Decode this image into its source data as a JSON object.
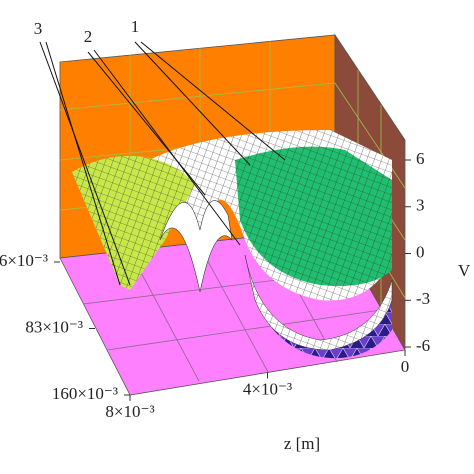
{
  "chart_data": {
    "type": "surface3d",
    "annotations": [
      "1",
      "2",
      "3"
    ],
    "x_label": "z [m]",
    "xlim": [
      0.008,
      0
    ],
    "xticks": [
      {
        "value": 0.008,
        "label": "8×10⁻³"
      },
      {
        "value": 0.004,
        "label": "4×10⁻³"
      },
      0
    ],
    "depth_lim": [
      0.006,
      0.16
    ],
    "depth_ticks": [
      {
        "value": 0.006,
        "label": "6×10⁻³"
      },
      {
        "value": 0.083,
        "label": "83×10⁻³"
      },
      {
        "value": 0.16,
        "label": "160×10⁻³"
      }
    ],
    "y_label": "V",
    "ylim": [
      -6,
      6
    ],
    "yticks": [
      6,
      3,
      0,
      -3,
      -6
    ]
  }
}
